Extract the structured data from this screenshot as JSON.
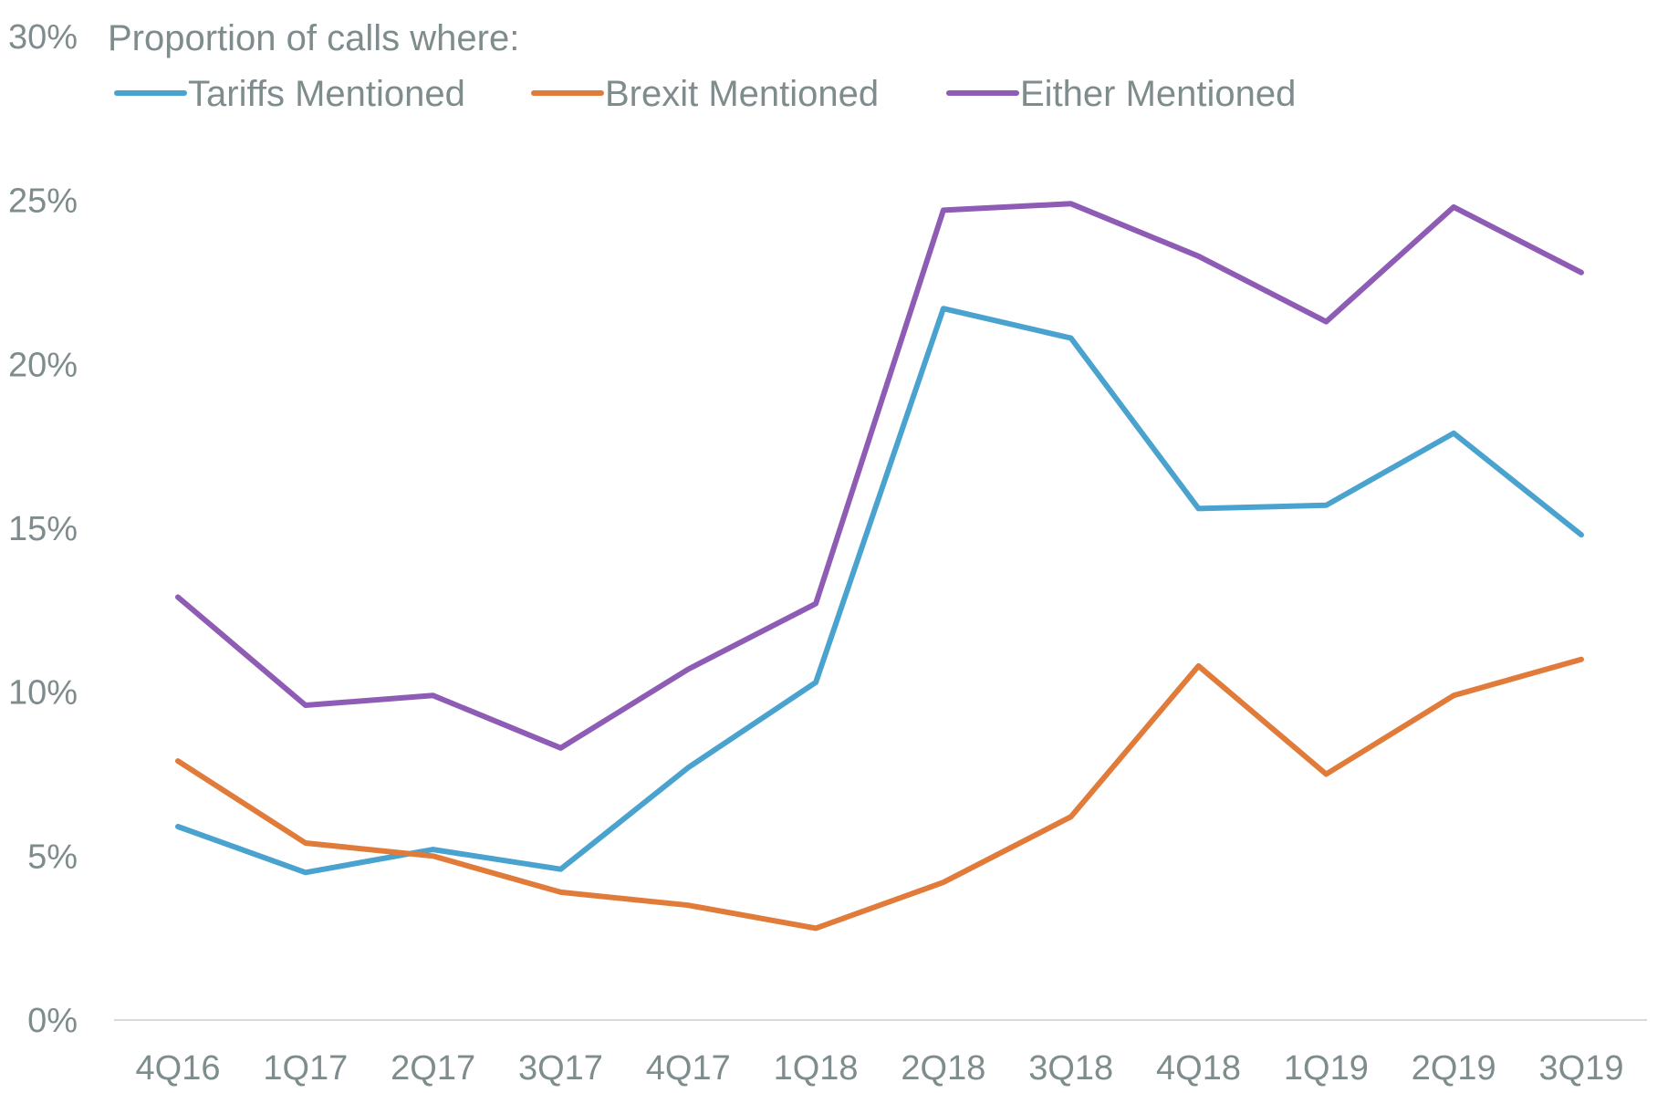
{
  "chart_data": {
    "type": "line",
    "title": "Proportion of calls where:",
    "xlabel": "",
    "ylabel": "",
    "categories": [
      "4Q16",
      "1Q17",
      "2Q17",
      "3Q17",
      "4Q17",
      "1Q18",
      "2Q18",
      "3Q18",
      "4Q18",
      "1Q19",
      "2Q19",
      "3Q19"
    ],
    "ylim": [
      0,
      30
    ],
    "yticks": [
      "0%",
      "5%",
      "10%",
      "15%",
      "20%",
      "25%",
      "30%"
    ],
    "ytick_values": [
      0,
      5,
      10,
      15,
      20,
      25,
      30
    ],
    "grid": false,
    "legend_position": "top",
    "series": [
      {
        "name": "Tariffs Mentioned",
        "color": "#4aa3cf",
        "values": [
          5.9,
          4.5,
          5.2,
          4.6,
          7.7,
          10.3,
          21.7,
          20.8,
          15.6,
          15.7,
          17.9,
          14.8
        ]
      },
      {
        "name": "Brexit Mentioned",
        "color": "#e07b39",
        "values": [
          7.9,
          5.4,
          5.0,
          3.9,
          3.5,
          2.8,
          4.2,
          6.2,
          10.8,
          7.5,
          9.9,
          11.0
        ]
      },
      {
        "name": "Either Mentioned",
        "color": "#8e5bb5",
        "values": [
          12.9,
          9.6,
          9.9,
          8.3,
          10.7,
          12.7,
          24.7,
          24.9,
          23.3,
          21.3,
          24.8,
          22.8
        ]
      }
    ]
  }
}
